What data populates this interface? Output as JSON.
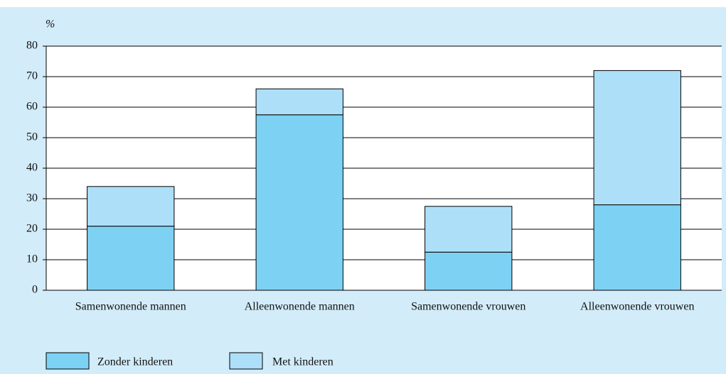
{
  "chart_data": {
    "type": "stacked_bar",
    "y_label": "%",
    "categories": [
      "Samenwonende mannen",
      "Alleenwonende mannen",
      "Samenwonende vrouwen",
      "Alleenwonende vrouwen"
    ],
    "series": [
      {
        "name": "Zonder kinderen",
        "color": "#7dd2f4",
        "values": [
          21,
          57.5,
          12.5,
          28
        ]
      },
      {
        "name": "Met kinderen",
        "color": "#addff8",
        "values": [
          13,
          8.5,
          15,
          44
        ]
      }
    ],
    "ylim": [
      0,
      80
    ],
    "yticks": [
      0,
      10,
      20,
      30,
      40,
      50,
      60,
      70,
      80
    ],
    "grid": true
  }
}
